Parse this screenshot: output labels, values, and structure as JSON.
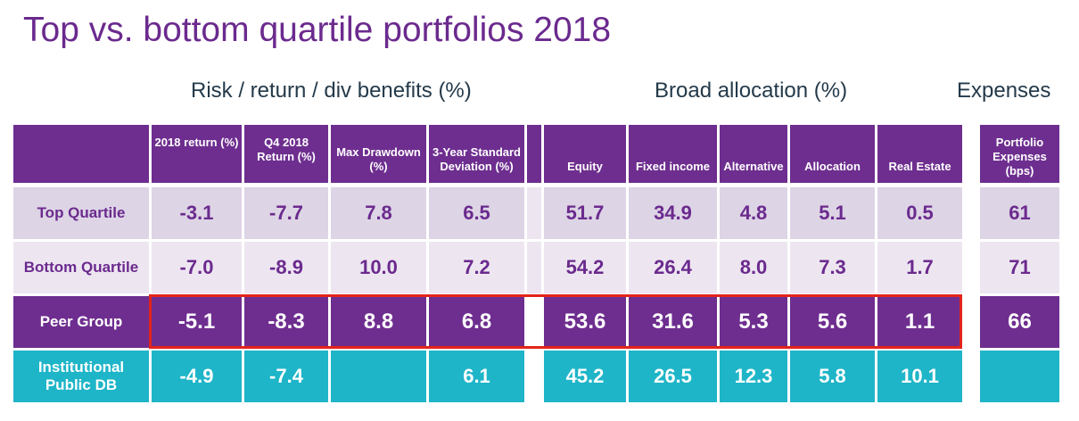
{
  "title": "Top vs. bottom quartile portfolios 2018",
  "sections": {
    "risk": "Risk / return / div benefits (%)",
    "allocation": "Broad allocation (%)",
    "expenses": "Expenses"
  },
  "headers": {
    "ret2018": "2018 return (%)",
    "q4": "Q4 2018 Return (%)",
    "maxdd": "Max Drawdown (%)",
    "std3y": "3-Year Standard Deviation (%)",
    "equity": "Equity",
    "fixed": "Fixed income",
    "alternative": "Alternative",
    "allocation": "Allocation",
    "realestate": "Real Estate",
    "expenses": "Portfolio Expenses (bps)"
  },
  "rows": [
    {
      "label": "Top Quartile",
      "ret2018": "-3.1",
      "q4": "-7.7",
      "maxdd": "7.8",
      "std3y": "6.5",
      "equity": "51.7",
      "fixed": "34.9",
      "alternative": "4.8",
      "allocation": "5.1",
      "realestate": "0.5",
      "expenses": "61"
    },
    {
      "label": "Bottom Quartile",
      "ret2018": "-7.0",
      "q4": "-8.9",
      "maxdd": "10.0",
      "std3y": "7.2",
      "equity": "54.2",
      "fixed": "26.4",
      "alternative": "8.0",
      "allocation": "7.3",
      "realestate": "1.7",
      "expenses": "71"
    },
    {
      "label": "Peer Group",
      "ret2018": "-5.1",
      "q4": "-8.3",
      "maxdd": "8.8",
      "std3y": "6.8",
      "equity": "53.6",
      "fixed": "31.6",
      "alternative": "5.3",
      "allocation": "5.6",
      "realestate": "1.1",
      "expenses": "66"
    },
    {
      "label": "Institutional Public DB",
      "ret2018": "-4.9",
      "q4": "-7.4",
      "maxdd": "",
      "std3y": "6.1",
      "equity": "45.2",
      "fixed": "26.5",
      "alternative": "12.3",
      "allocation": "5.8",
      "realestate": "10.1",
      "expenses": ""
    }
  ],
  "colors": {
    "header": "#6e2e8f",
    "row_top": "#ddd4e5",
    "row_bottom": "#ede6f1",
    "row_peer": "#6e2e8f",
    "row_inst": "#1eb5c8",
    "highlight_border": "#e3241b",
    "title": "#6b2a8e"
  }
}
